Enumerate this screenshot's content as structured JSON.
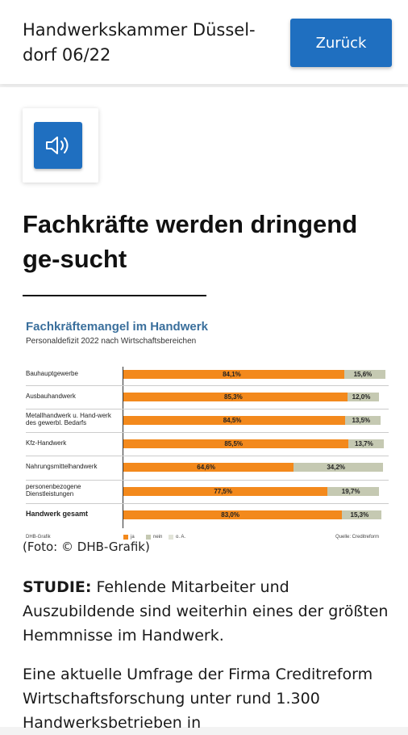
{
  "header": {
    "title": "Handwerkskammer Düssel-dorf 06/22",
    "back_label": "Zurück"
  },
  "article": {
    "headline": "Fachkräfte werden dringend ge-sucht",
    "image_caption": "(Foto: © DHB-Grafik)",
    "lead_label": "STUDIE:",
    "lead_text": " Fehlende Mitarbeiter und Auszubildende sind weiterhin eines der größten Hemmnisse im Handwerk.",
    "para2": "Eine aktuelle Umfrage der Firma Creditreform Wirtschaftsforschung unter rund 1.300 Handwerksbetrieben in"
  },
  "icons": {
    "audio": "speaker-icon"
  },
  "colors": {
    "accent": "#1f6fc0",
    "ja": "#f3891c",
    "nein": "#c5c9b2",
    "chart_title": "#3a6f9c"
  },
  "chart_data": {
    "type": "bar",
    "stacked": true,
    "orientation": "horizontal",
    "title": "Fachkräftemangel im Handwerk",
    "subtitle": "Personaldefizit 2022 nach Wirtschaftsbereichen",
    "categories": [
      "Bauhauptgewerbe",
      "Ausbauhandwerk",
      "Metallhandwerk u. Hand-werk des gewerbl. Bedarfs",
      "Kfz-Handwerk",
      "Nahrungsmittelhandwerk",
      "personenbezogene Dienstleistungen",
      "Handwerk gesamt"
    ],
    "series": [
      {
        "name": "ja",
        "values": [
          84.1,
          85.3,
          84.5,
          85.5,
          64.6,
          77.5,
          83.0
        ],
        "labels": [
          "84,1%",
          "85,3%",
          "84,5%",
          "85,5%",
          "64,6%",
          "77,5%",
          "83,0%"
        ]
      },
      {
        "name": "nein",
        "values": [
          15.6,
          12.0,
          13.5,
          13.7,
          34.2,
          19.7,
          15.3
        ],
        "labels": [
          "15,6%",
          "12,0%",
          "13,5%",
          "13,7%",
          "34,2%",
          "19,7%",
          "15,3%"
        ]
      },
      {
        "name": "o. A.",
        "values": [
          0.3,
          2.7,
          2.0,
          0.8,
          1.2,
          2.8,
          1.7
        ]
      }
    ],
    "xlim": [
      0,
      100
    ],
    "legend_position": "bottom",
    "footer_left": "DHB-Grafik",
    "footer_right": "Quelle: Creditreform"
  }
}
